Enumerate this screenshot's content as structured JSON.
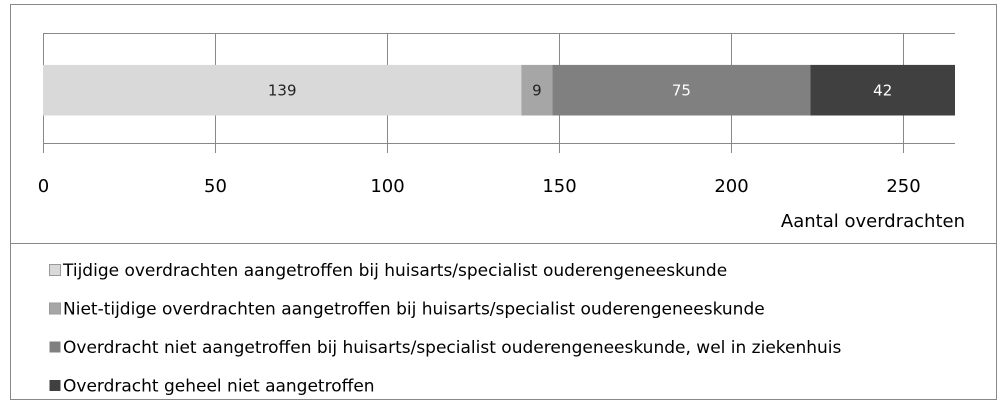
{
  "chart_data": {
    "type": "bar",
    "orientation": "horizontal",
    "stacked": true,
    "categories": [
      null
    ],
    "series": [
      {
        "name": "Tijdige overdrachten aangetroffen bij huisarts/specialist ouderengeneeskunde",
        "color": "#d9d9d9",
        "values": [
          139
        ]
      },
      {
        "name": "Niet-tijdige overdrachten aangetroffen bij huisarts/specialist ouderengeneeskunde",
        "color": "#a6a6a6",
        "values": [
          9
        ]
      },
      {
        "name": "Overdracht niet aangetroffen bij huisarts/specialist ouderengeneeskunde, wel in ziekenhuis",
        "color": "#808080",
        "values": [
          75
        ]
      },
      {
        "name": "Overdracht geheel niet aangetroffen",
        "color": "#404040",
        "values": [
          42
        ]
      }
    ],
    "x_label": "Aantal overdrachten",
    "xlim": [
      0,
      265
    ],
    "xticks": [
      0,
      50,
      100,
      150,
      200,
      250
    ],
    "grid": true,
    "legend": "bottom"
  }
}
